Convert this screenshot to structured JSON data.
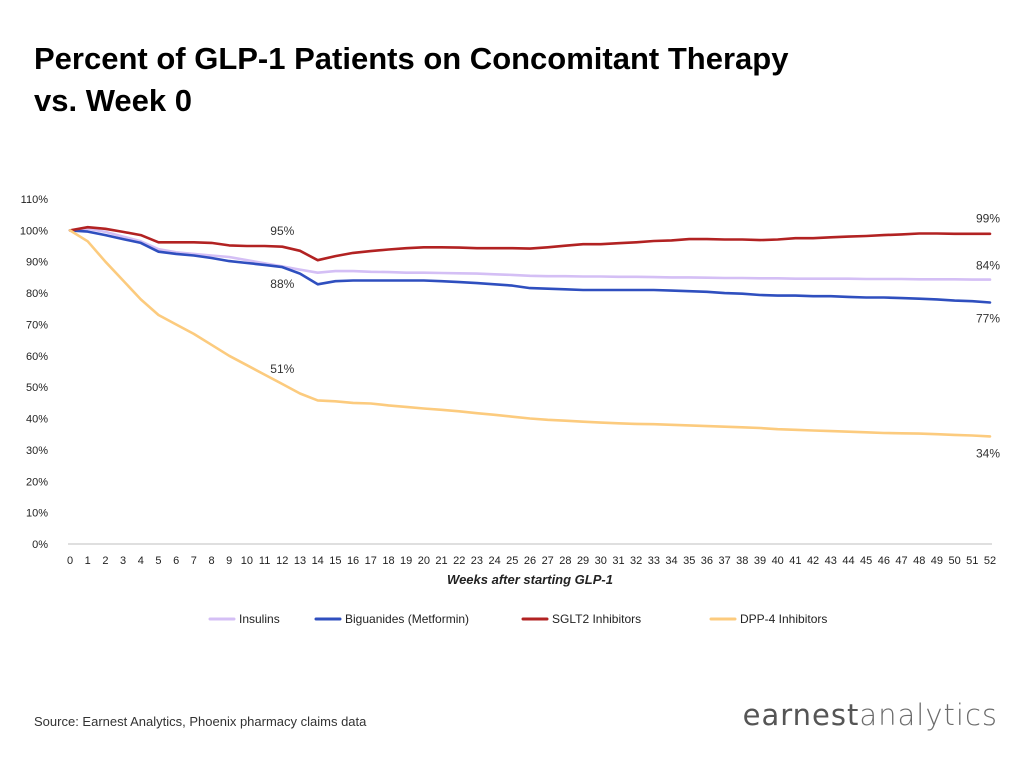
{
  "header": {
    "title_line1": "Percent of GLP-1 Patients on Concomitant Therapy",
    "title_line2": "vs. Week 0"
  },
  "footer": {
    "source": "Source: Earnest Analytics, Phoenix pharmacy claims data",
    "logo_text_bold": "earnest",
    "logo_text_light": "analytics"
  },
  "chart_data": {
    "type": "line",
    "xlabel": "Weeks after starting GLP-1",
    "ylabel": "",
    "ylim": [
      0,
      110
    ],
    "y_ticks": [
      "0%",
      "10%",
      "20%",
      "30%",
      "40%",
      "50%",
      "60%",
      "70%",
      "80%",
      "90%",
      "100%",
      "110%"
    ],
    "x": [
      0,
      1,
      2,
      3,
      4,
      5,
      6,
      7,
      8,
      9,
      10,
      11,
      12,
      13,
      14,
      15,
      16,
      17,
      18,
      19,
      20,
      21,
      22,
      23,
      24,
      25,
      26,
      27,
      28,
      29,
      30,
      31,
      32,
      33,
      34,
      35,
      36,
      37,
      38,
      39,
      40,
      41,
      42,
      43,
      44,
      45,
      46,
      47,
      48,
      49,
      50,
      51,
      52
    ],
    "grid": false,
    "legend_position": "bottom",
    "series": [
      {
        "name": "Insulins",
        "color": "#d4bff5",
        "values": [
          100,
          100.5,
          99.5,
          98,
          96.5,
          94,
          93,
          92.5,
          92,
          91.5,
          90.5,
          89.5,
          88.5,
          87.5,
          86.5,
          87,
          87,
          86.8,
          86.7,
          86.5,
          86.5,
          86.4,
          86.3,
          86.2,
          86,
          85.8,
          85.5,
          85.4,
          85.4,
          85.3,
          85.3,
          85.2,
          85.2,
          85.1,
          85,
          85,
          84.9,
          84.8,
          84.8,
          84.7,
          84.7,
          84.6,
          84.6,
          84.6,
          84.6,
          84.5,
          84.5,
          84.5,
          84.4,
          84.4,
          84.4,
          84.3,
          84.3
        ]
      },
      {
        "name": "Biguanides (Metformin)",
        "color": "#2f4fbf",
        "values": [
          100,
          99.6,
          98.5,
          97.2,
          96,
          93.2,
          92.5,
          92,
          91.2,
          90.2,
          89.6,
          89,
          88.3,
          86.2,
          82.8,
          83.8,
          84,
          84,
          84,
          84,
          84,
          83.8,
          83.5,
          83.2,
          82.8,
          82.4,
          81.6,
          81.4,
          81.2,
          81,
          81,
          81,
          81,
          81,
          80.8,
          80.6,
          80.4,
          80,
          79.8,
          79.4,
          79.2,
          79.2,
          79,
          79,
          78.8,
          78.6,
          78.6,
          78.4,
          78.2,
          78,
          77.6,
          77.4,
          77
        ]
      },
      {
        "name": "SGLT2 Inhibitors",
        "color": "#b22222",
        "values": [
          100,
          101,
          100.5,
          99.5,
          98.5,
          96.2,
          96.2,
          96.2,
          96,
          95.2,
          95,
          95,
          94.8,
          93.5,
          90.5,
          91.8,
          92.8,
          93.4,
          93.9,
          94.3,
          94.6,
          94.6,
          94.5,
          94.3,
          94.3,
          94.3,
          94.2,
          94.6,
          95.1,
          95.6,
          95.6,
          95.9,
          96.2,
          96.6,
          96.8,
          97.2,
          97.2,
          97.1,
          97.1,
          96.9,
          97.1,
          97.5,
          97.5,
          97.8,
          98,
          98.2,
          98.5,
          98.7,
          99,
          99,
          98.9,
          98.9,
          98.9
        ]
      },
      {
        "name": "DPP-4 Inhibitors",
        "color": "#fccb7e",
        "values": [
          100,
          96.5,
          90,
          84,
          78,
          73,
          70,
          67,
          63.5,
          60,
          57,
          54,
          51,
          48,
          45.8,
          45.5,
          45,
          44.8,
          44.2,
          43.7,
          43.2,
          42.8,
          42.3,
          41.7,
          41.2,
          40.6,
          40,
          39.6,
          39.3,
          39,
          38.7,
          38.5,
          38.3,
          38.2,
          38,
          37.8,
          37.6,
          37.4,
          37.2,
          37,
          36.6,
          36.4,
          36.2,
          36,
          35.8,
          35.6,
          35.4,
          35.3,
          35.2,
          35,
          34.8,
          34.6,
          34.3
        ]
      }
    ],
    "annotations": [
      {
        "text": "95%",
        "x": 12,
        "y": 95,
        "position": "above",
        "series": "SGLT2 Inhibitors"
      },
      {
        "text": "88%",
        "x": 12,
        "y": 88,
        "position": "below",
        "series": "Biguanides (Metformin)"
      },
      {
        "text": "51%",
        "x": 12,
        "y": 51,
        "position": "above",
        "series": "DPP-4 Inhibitors"
      },
      {
        "text": "99%",
        "x": 52,
        "y": 99,
        "position": "above",
        "series": "SGLT2 Inhibitors"
      },
      {
        "text": "84%",
        "x": 52,
        "y": 84,
        "position": "above",
        "series": "Insulins"
      },
      {
        "text": "77%",
        "x": 52,
        "y": 77,
        "position": "below",
        "series": "Biguanides (Metformin)"
      },
      {
        "text": "34%",
        "x": 52,
        "y": 34,
        "position": "below",
        "series": "DPP-4 Inhibitors"
      }
    ]
  }
}
